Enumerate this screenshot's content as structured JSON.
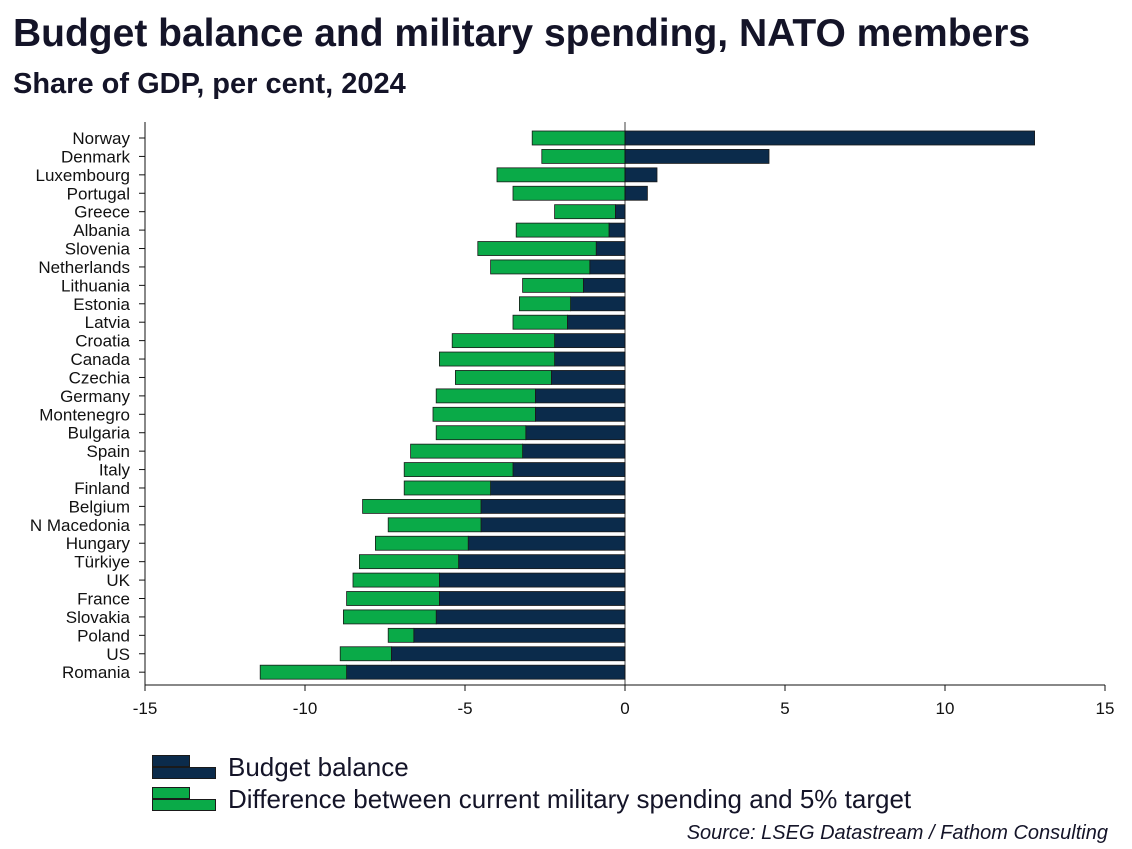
{
  "title": "Budget balance and military spending, NATO members",
  "subtitle": "Share of GDP, per cent, 2024",
  "source": "Source: LSEG Datastream / Fathom Consulting",
  "colors": {
    "budget": "#0b2b4b",
    "military": "#0aaa48",
    "border": "#1a1a1a"
  },
  "chart_data": {
    "type": "bar",
    "orientation": "horizontal",
    "stacked": true,
    "categories": [
      "Norway",
      "Denmark",
      "Luxembourg",
      "Portugal",
      "Greece",
      "Albania",
      "Slovenia",
      "Netherlands",
      "Lithuania",
      "Estonia",
      "Latvia",
      "Croatia",
      "Canada",
      "Czechia",
      "Germany",
      "Montenegro",
      "Bulgaria",
      "Spain",
      "Italy",
      "Finland",
      "Belgium",
      "N Macedonia",
      "Hungary",
      "Türkiye",
      "UK",
      "France",
      "Slovakia",
      "Poland",
      "US",
      "Romania"
    ],
    "series": [
      {
        "name": "Budget balance",
        "values": [
          12.8,
          4.5,
          1.0,
          0.7,
          -0.3,
          -0.5,
          -0.9,
          -1.1,
          -1.3,
          -1.7,
          -1.8,
          -2.2,
          -2.2,
          -2.3,
          -2.8,
          -2.8,
          -3.1,
          -3.2,
          -3.5,
          -4.2,
          -4.5,
          -4.5,
          -4.9,
          -5.2,
          -5.8,
          -5.8,
          -5.9,
          -6.6,
          -7.3,
          -8.7
        ]
      },
      {
        "name": "Difference between current military spending and 5% target",
        "values": [
          -2.9,
          -2.6,
          -4.0,
          -3.5,
          -1.9,
          -2.9,
          -3.7,
          -3.1,
          -1.9,
          -1.6,
          -1.7,
          -3.2,
          -3.6,
          -3.0,
          -3.1,
          -3.2,
          -2.8,
          -3.5,
          -3.4,
          -2.7,
          -3.7,
          -2.9,
          -2.9,
          -3.1,
          -2.7,
          -2.9,
          -2.9,
          -0.8,
          -1.6,
          -2.7
        ]
      }
    ],
    "xlim": [
      -15,
      15
    ],
    "xticks": [
      -15,
      -10,
      -5,
      0,
      5,
      10,
      15
    ],
    "xlabel": "",
    "ylabel": "",
    "legend": "bottom-left",
    "grid": false
  }
}
